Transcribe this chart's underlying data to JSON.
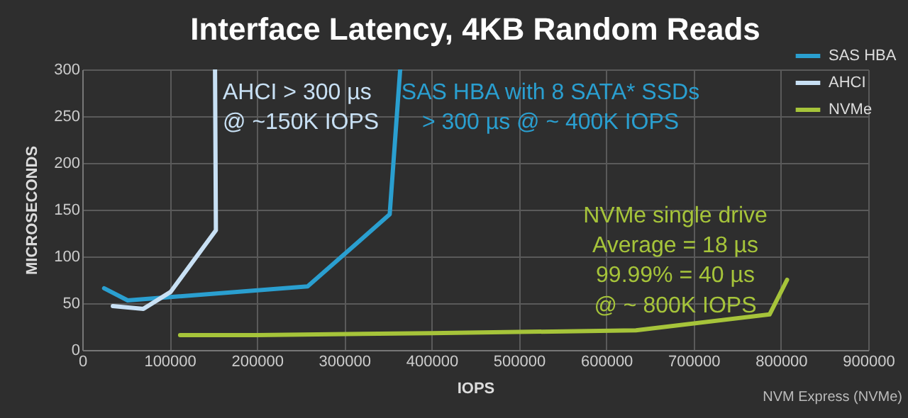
{
  "chart_data": {
    "type": "line",
    "title": "Interface Latency, 4KB Random Reads",
    "xlabel": "IOPS",
    "ylabel": "MICROSECONDS",
    "xlim": [
      0,
      900000
    ],
    "xticks": [
      0,
      100000,
      200000,
      300000,
      400000,
      500000,
      600000,
      700000,
      800000,
      900000
    ],
    "ylim": [
      0,
      300
    ],
    "yticks": [
      0,
      50,
      100,
      150,
      200,
      250,
      300
    ],
    "grid": true,
    "legend": "top right",
    "series": [
      {
        "name": "SAS HBA",
        "color": "#2a9fd0",
        "x": [
          25000,
          52000,
          258000,
          352000,
          364000
        ],
        "values": [
          66,
          53,
          68,
          145,
          300
        ]
      },
      {
        "name": "AHCI",
        "color": "#c8e0f4",
        "x": [
          35000,
          70000,
          101000,
          153000,
          152000
        ],
        "values": [
          47,
          44,
          62,
          128,
          300
        ]
      },
      {
        "name": "NVMe",
        "color": "#a6c43a",
        "x": [
          112000,
          200000,
          400000,
          634000,
          787000,
          807000
        ],
        "values": [
          16,
          16,
          18,
          21,
          38,
          75
        ]
      }
    ],
    "annotations": [
      "AHCI > 300 µs\n@ ~150K IOPS",
      "SAS HBA with 8 SATA* SSDs\n > 300 µs @ ~ 400K IOPS",
      "NVMe single drive\nAverage = 18 µs\n99.99% = 40 µs\n@ ~ 800K IOPS",
      "NVM Express (NVMe)"
    ]
  }
}
